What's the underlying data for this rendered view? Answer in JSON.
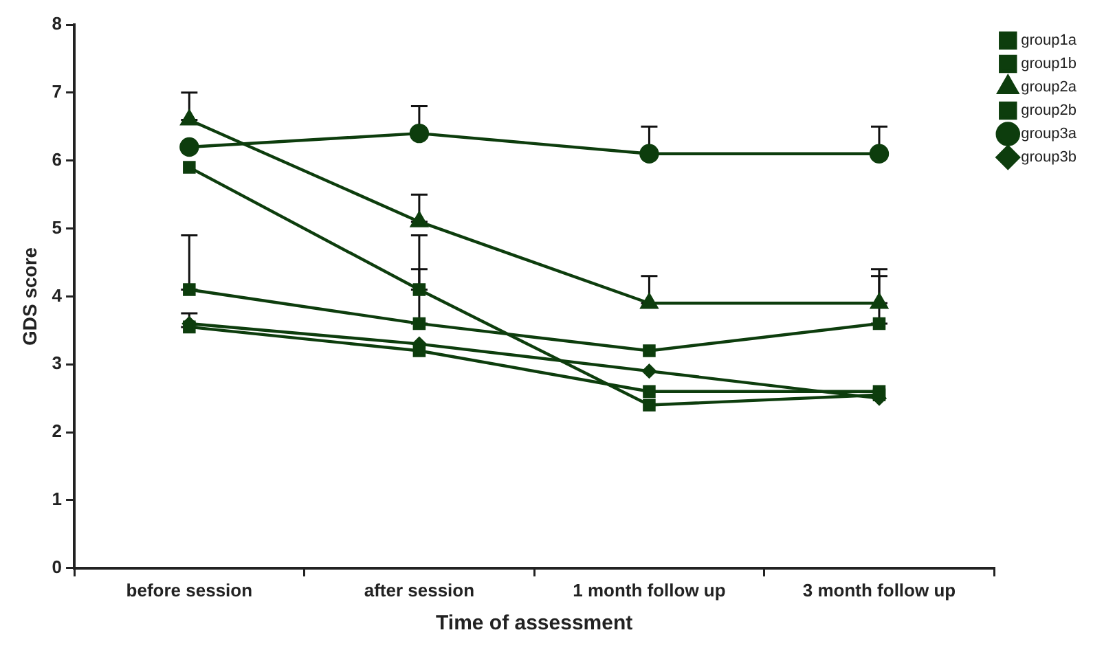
{
  "chart_data": {
    "type": "line",
    "xlabel": "Time of assessment",
    "ylabel": "GDS score",
    "categories": [
      "before session",
      "after session",
      "1 month follow up",
      "3 month follow up"
    ],
    "ylim": [
      0,
      8
    ],
    "yticks": [
      0,
      1,
      2,
      3,
      4,
      5,
      6,
      7,
      8
    ],
    "grid": false,
    "legend": "top right",
    "line_style": "solid",
    "series": [
      {
        "name": "group1a",
        "color": "#0d3d0d",
        "marker": "square",
        "values": [
          5.9,
          4.1,
          2.4,
          2.55
        ],
        "errors": [
          null,
          [
            4.1,
            4.9
          ],
          null,
          null
        ]
      },
      {
        "name": "group1b",
        "color": "#0d3d0d",
        "marker": "square",
        "values": [
          3.55,
          3.2,
          2.6,
          2.6
        ],
        "errors": [
          [
            3.55,
            3.75
          ],
          null,
          null,
          null
        ]
      },
      {
        "name": "group2a",
        "color": "#0d3d0d",
        "marker": "triangle",
        "values": [
          6.6,
          5.1,
          3.9,
          3.9
        ],
        "errors": [
          [
            6.6,
            7.0
          ],
          [
            5.1,
            5.5
          ],
          [
            3.9,
            4.3
          ],
          [
            3.9,
            4.4
          ]
        ]
      },
      {
        "name": "group2b",
        "color": "#0d3d0d",
        "marker": "square",
        "values": [
          4.1,
          3.6,
          3.2,
          3.6
        ],
        "errors": [
          [
            4.1,
            4.9
          ],
          [
            3.6,
            4.4
          ],
          null,
          [
            3.6,
            4.3
          ]
        ]
      },
      {
        "name": "group3a",
        "color": "#0d3d0d",
        "marker": "circle",
        "values": [
          6.2,
          6.4,
          6.1,
          6.1
        ],
        "errors": [
          null,
          [
            6.4,
            6.8
          ],
          [
            6.1,
            6.5
          ],
          [
            6.1,
            6.5
          ]
        ]
      },
      {
        "name": "group3b",
        "color": "#0d3d0d",
        "marker": "diamond",
        "values": [
          3.6,
          3.3,
          2.9,
          2.5
        ]
      }
    ]
  }
}
